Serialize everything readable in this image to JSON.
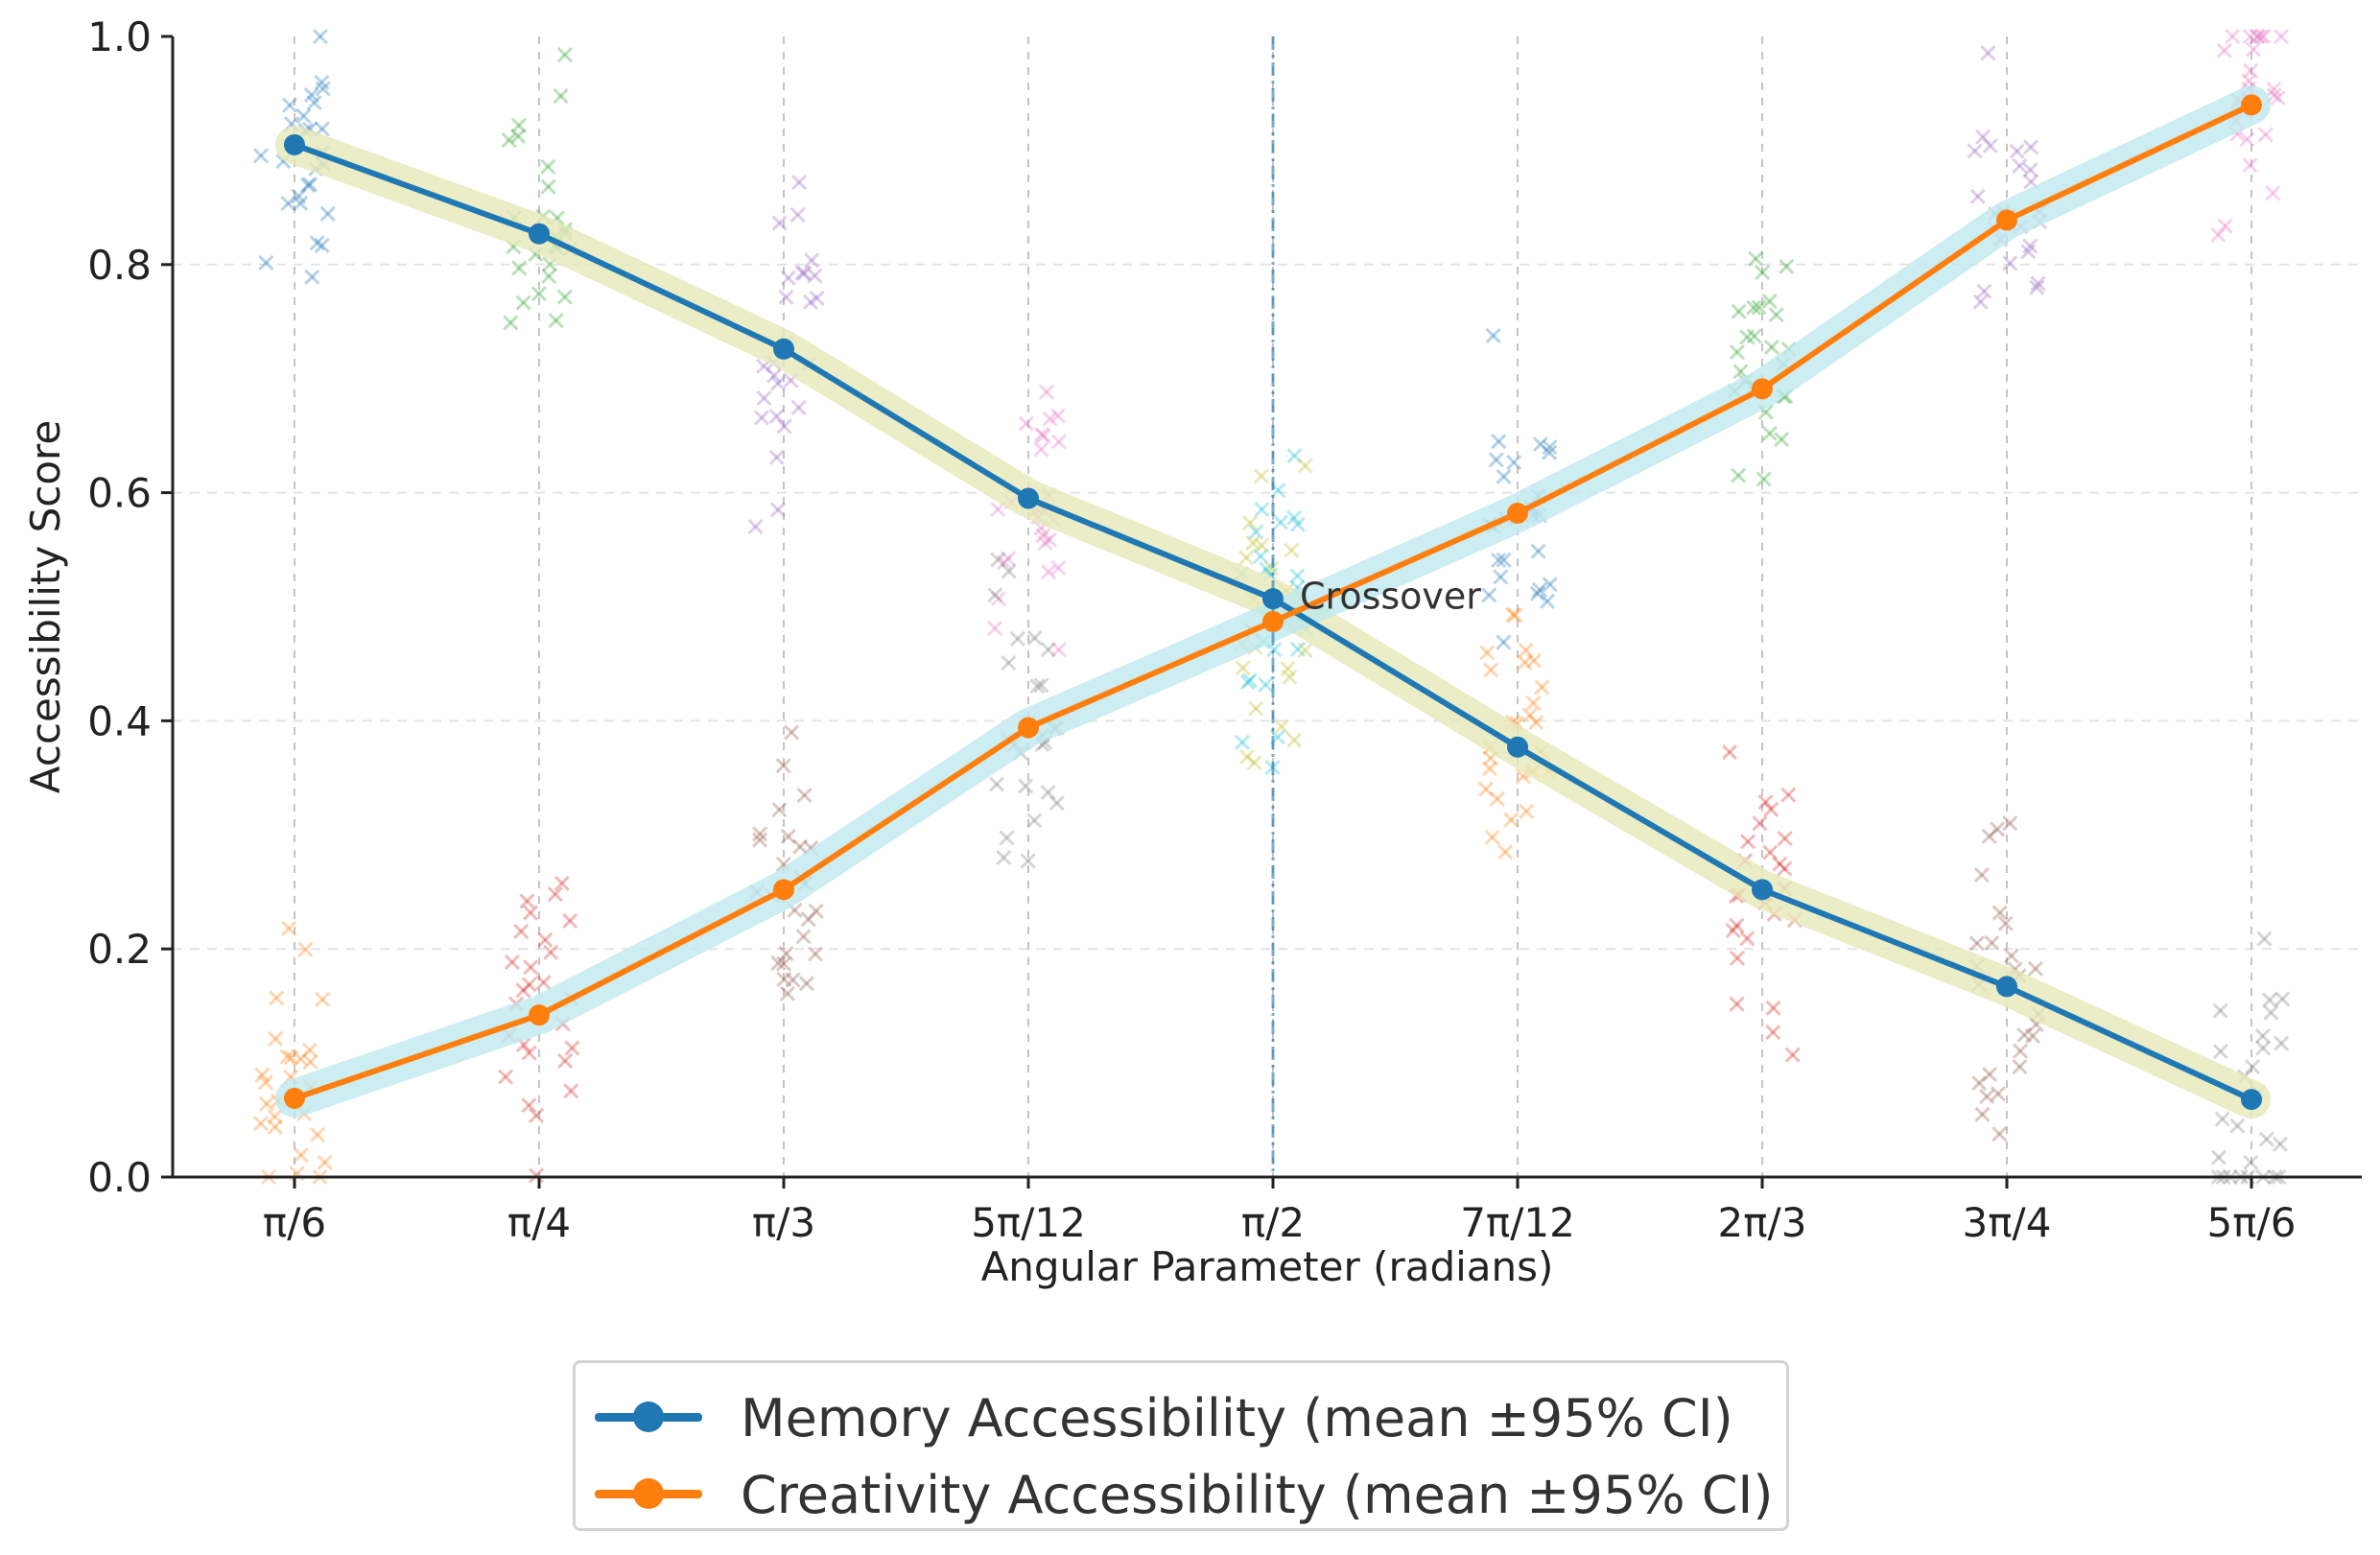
{
  "chart_data": {
    "type": "line",
    "title": "",
    "xlabel": "Angular Parameter (radians)",
    "ylabel": "Accessibility Score",
    "categories": [
      "π/6",
      "π/4",
      "π/3",
      "5π/12",
      "π/2",
      "7π/12",
      "2π/3",
      "3π/4",
      "5π/6"
    ],
    "ylim": [
      0,
      1
    ],
    "yticks": [
      "0.0",
      "0.2",
      "0.4",
      "0.6",
      "0.8",
      "1.0"
    ],
    "grid": true,
    "legend_position": "bottom-center",
    "series": [
      {
        "name": "Memory Accessibility (mean ±95% CI)",
        "color": "#1f77b4",
        "band_color": "#e6e8b8",
        "values": [
          0.905,
          0.827,
          0.726,
          0.595,
          0.507,
          0.377,
          0.252,
          0.167,
          0.068
        ]
      },
      {
        "name": "Creativity Accessibility (mean ±95% CI)",
        "color": "#ff7f0e",
        "band_color": "#bfe8ee",
        "values": [
          0.069,
          0.142,
          0.252,
          0.394,
          0.487,
          0.582,
          0.691,
          0.839,
          0.94
        ]
      }
    ],
    "annotations": [
      {
        "text": "Crossover",
        "category_index": 4,
        "y": 0.5
      }
    ],
    "scatter_palette": [
      "#1f77b4",
      "#2ca02c",
      "#9467bd",
      "#e377c2",
      "#17becf",
      "#ff7f0e",
      "#d62728",
      "#8c564b",
      "#7f7f7f",
      "#bcbd22"
    ]
  }
}
